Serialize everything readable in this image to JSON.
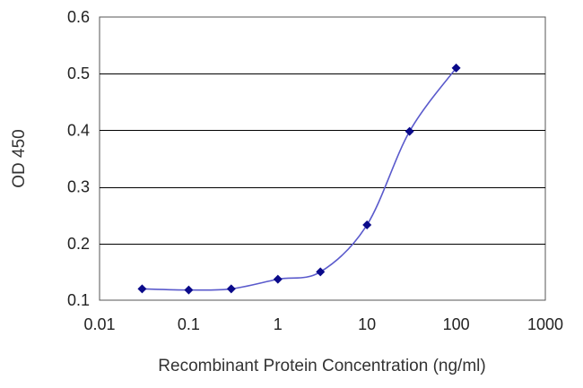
{
  "chart_data": {
    "type": "scatter",
    "xlabel": "Recombinant Protein Concentration (ng/ml)",
    "ylabel": "OD 450",
    "x_scale": "log",
    "xlim": [
      0.01,
      1000
    ],
    "ylim": [
      0.1,
      0.6
    ],
    "x_ticks": [
      "0.01",
      "0.1",
      "1",
      "10",
      "100",
      "1000"
    ],
    "y_ticks": [
      "0.1",
      "0.2",
      "0.3",
      "0.4",
      "0.5",
      "0.6"
    ],
    "horizontal_grid": true,
    "series": [
      {
        "x": [
          0.03,
          0.1,
          0.3,
          1,
          3,
          10,
          30,
          100
        ],
        "y": [
          0.12,
          0.118,
          0.12,
          0.137,
          0.15,
          0.233,
          0.398,
          0.51
        ]
      }
    ],
    "fit_curve": true,
    "colors": {
      "marker": "#0a0a8a",
      "line": "#5a5acc"
    }
  }
}
